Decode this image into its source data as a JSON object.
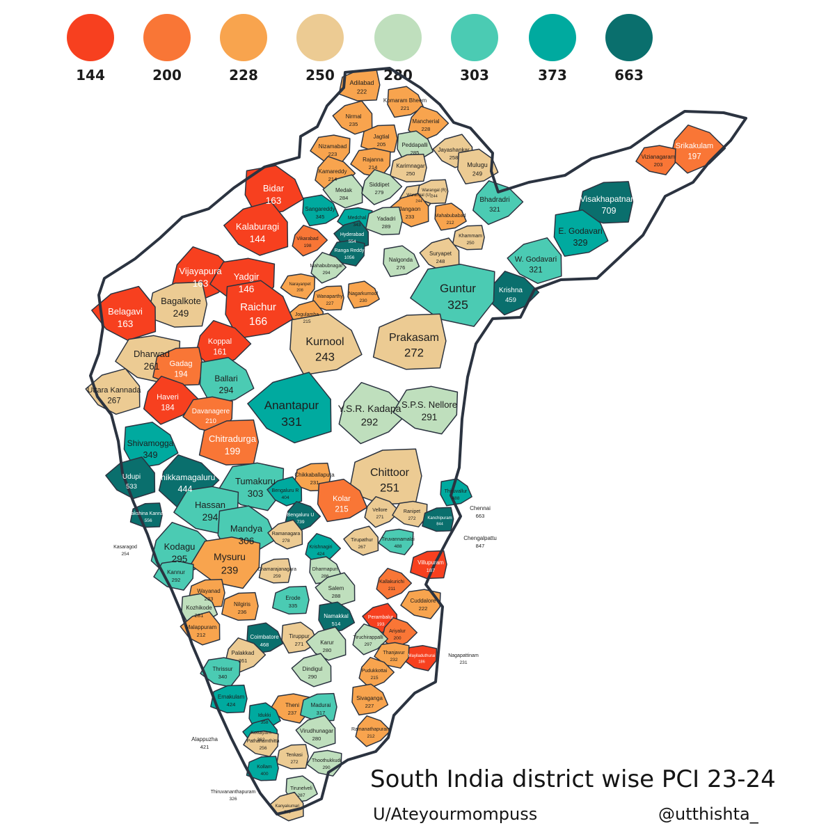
{
  "legend": {
    "items": [
      {
        "label": "144",
        "color": "#f7401f"
      },
      {
        "label": "200",
        "color": "#f97636"
      },
      {
        "label": "228",
        "color": "#f8a44e"
      },
      {
        "label": "250",
        "color": "#eccb93"
      },
      {
        "label": "280",
        "color": "#bfdfbd"
      },
      {
        "label": "303",
        "color": "#4bcbb3"
      },
      {
        "label": "373",
        "color": "#00aa9f"
      },
      {
        "label": "663",
        "color": "#0a6f6d"
      }
    ]
  },
  "title": "South India district wise PCI 23-24",
  "credits": {
    "author": "U/Ateyourmompuss",
    "handle": "@utthishta_"
  },
  "colors": {
    "border": "#2b3340",
    "text_dark": "#1d1d1d",
    "text_light": "#ffffff"
  },
  "districts": [
    {
      "name": "Adilabad",
      "value": "222",
      "bin": 2
    },
    {
      "name": "Komaram Bheem",
      "value": "221",
      "bin": 2
    },
    {
      "name": "Nirmal",
      "value": "235",
      "bin": 2
    },
    {
      "name": "Mancherial",
      "value": "228",
      "bin": 2
    },
    {
      "name": "Nizamabad",
      "value": "223",
      "bin": 2
    },
    {
      "name": "Jagtial",
      "value": "205",
      "bin": 2
    },
    {
      "name": "Peddapalli",
      "value": "285",
      "bin": 4
    },
    {
      "name": "Jayashankar",
      "value": "258",
      "bin": 3
    },
    {
      "name": "Kamareddy",
      "value": "214",
      "bin": 2
    },
    {
      "name": "Rajanna",
      "value": "214",
      "bin": 2
    },
    {
      "name": "Karimnagar",
      "value": "250",
      "bin": 3
    },
    {
      "name": "Mulugu",
      "value": "249",
      "bin": 3
    },
    {
      "name": "Medak",
      "value": "284",
      "bin": 4
    },
    {
      "name": "Siddipet",
      "value": "279",
      "bin": 4
    },
    {
      "name": "Warangal (U)",
      "value": "244",
      "bin": 3
    },
    {
      "name": "Warangal (R)",
      "value": "244",
      "bin": 3
    },
    {
      "name": "Sangareddy",
      "value": "345",
      "bin": 6
    },
    {
      "name": "Jangaon",
      "value": "233",
      "bin": 2
    },
    {
      "name": "Bhadradri",
      "value": "321",
      "bin": 5
    },
    {
      "name": "Medchal",
      "value": "343",
      "bin": 6
    },
    {
      "name": "Yadadri",
      "value": "289",
      "bin": 4
    },
    {
      "name": "Mahabubabad",
      "value": "212",
      "bin": 2
    },
    {
      "name": "Hyderabad",
      "value": "554",
      "bin": 7
    },
    {
      "name": "Vikarabad",
      "value": "198",
      "bin": 1
    },
    {
      "name": "Ranga Reddy",
      "value": "1056",
      "bin": 7
    },
    {
      "name": "Khammam",
      "value": "250",
      "bin": 3
    },
    {
      "name": "Nalgonda",
      "value": "276",
      "bin": 4
    },
    {
      "name": "Suryapet",
      "value": "248",
      "bin": 3
    },
    {
      "name": "Mahabubnagar",
      "value": "294",
      "bin": 4
    },
    {
      "name": "Narayanpet",
      "value": "208",
      "bin": 2
    },
    {
      "name": "Wanaparthy",
      "value": "227",
      "bin": 2
    },
    {
      "name": "Nagarkurnool",
      "value": "230",
      "bin": 2
    },
    {
      "name": "Jogulamba",
      "value": "215",
      "bin": 2
    },
    {
      "name": "Srikakulam",
      "value": "197",
      "bin": 1
    },
    {
      "name": "Vizianagaram",
      "value": "203",
      "bin": 1
    },
    {
      "name": "Visakhapatnam",
      "value": "709",
      "bin": 7
    },
    {
      "name": "E. Godavari",
      "value": "329",
      "bin": 6
    },
    {
      "name": "W. Godavari",
      "value": "321",
      "bin": 5
    },
    {
      "name": "Krishna",
      "value": "459",
      "bin": 7
    },
    {
      "name": "Guntur",
      "value": "325",
      "bin": 5
    },
    {
      "name": "Prakasam",
      "value": "272",
      "bin": 3
    },
    {
      "name": "Kurnool",
      "value": "243",
      "bin": 3
    },
    {
      "name": "Anantapur",
      "value": "331",
      "bin": 6
    },
    {
      "name": "Y.S.R. Kadapa",
      "value": "292",
      "bin": 4
    },
    {
      "name": "S.P.S. Nellore",
      "value": "291",
      "bin": 4
    },
    {
      "name": "Chittoor",
      "value": "251",
      "bin": 3
    },
    {
      "name": "Bidar",
      "value": "163",
      "bin": 0
    },
    {
      "name": "Kalaburagi",
      "value": "144",
      "bin": 0
    },
    {
      "name": "Vijayapura",
      "value": "163",
      "bin": 0
    },
    {
      "name": "Yadgir",
      "value": "146",
      "bin": 0
    },
    {
      "name": "Bagalkote",
      "value": "249",
      "bin": 3
    },
    {
      "name": "Raichur",
      "value": "166",
      "bin": 0
    },
    {
      "name": "Belagavi",
      "value": "163",
      "bin": 0
    },
    {
      "name": "Koppal",
      "value": "161",
      "bin": 0
    },
    {
      "name": "Dharwad",
      "value": "261",
      "bin": 3
    },
    {
      "name": "Gadag",
      "value": "194",
      "bin": 1
    },
    {
      "name": "Ballari",
      "value": "294",
      "bin": 5
    },
    {
      "name": "Uttara Kannada",
      "value": "267",
      "bin": 3
    },
    {
      "name": "Haveri",
      "value": "184",
      "bin": 0
    },
    {
      "name": "Davanagere",
      "value": "210",
      "bin": 1
    },
    {
      "name": "Chitradurga",
      "value": "199",
      "bin": 1
    },
    {
      "name": "Shivamogga",
      "value": "349",
      "bin": 6
    },
    {
      "name": "Udupi",
      "value": "533",
      "bin": 7
    },
    {
      "name": "Chikkamagaluru",
      "value": "444",
      "bin": 7
    },
    {
      "name": "Tumakuru",
      "value": "303",
      "bin": 5
    },
    {
      "name": "Chikkaballapura",
      "value": "231",
      "bin": 2
    },
    {
      "name": "Kolar",
      "value": "215",
      "bin": 1
    },
    {
      "name": "Bengaluru R",
      "value": "404",
      "bin": 6
    },
    {
      "name": "Bengaluru U",
      "value": "739",
      "bin": 7
    },
    {
      "name": "Hassan",
      "value": "294",
      "bin": 5
    },
    {
      "name": "Dakshina Kannada",
      "value": "556",
      "bin": 7
    },
    {
      "name": "Mandya",
      "value": "306",
      "bin": 5
    },
    {
      "name": "Ramanagara",
      "value": "278",
      "bin": 3
    },
    {
      "name": "Kodagu",
      "value": "295",
      "bin": 5
    },
    {
      "name": "Mysuru",
      "value": "239",
      "bin": 2
    },
    {
      "name": "Chamarajanagara",
      "value": "259",
      "bin": 3
    },
    {
      "name": "Thiruvallur",
      "value": "488",
      "bin": 6
    },
    {
      "name": "Chennai",
      "value": "663",
      "bin": 7
    },
    {
      "name": "Vellore",
      "value": "271",
      "bin": 3
    },
    {
      "name": "Ranipet",
      "value": "272",
      "bin": 3
    },
    {
      "name": "Kanchipuram",
      "value": "844",
      "bin": 7
    },
    {
      "name": "Chengalpattu",
      "value": "847",
      "bin": 7
    },
    {
      "name": "Tirupathur",
      "value": "267",
      "bin": 3
    },
    {
      "name": "Krishnagiri",
      "value": "424",
      "bin": 6
    },
    {
      "name": "Tiruvannamalai",
      "value": "488",
      "bin": 5
    },
    {
      "name": "Villupuram",
      "value": "187",
      "bin": 0
    },
    {
      "name": "Dharmapuri",
      "value": "286",
      "bin": 4
    },
    {
      "name": "Salem",
      "value": "288",
      "bin": 4
    },
    {
      "name": "Kallakurichi",
      "value": "211",
      "bin": 1
    },
    {
      "name": "Cuddalore",
      "value": "222",
      "bin": 2
    },
    {
      "name": "Erode",
      "value": "335",
      "bin": 5
    },
    {
      "name": "Namakkal",
      "value": "514",
      "bin": 7
    },
    {
      "name": "Perambalur",
      "value": "193",
      "bin": 0
    },
    {
      "name": "Ariyalur",
      "value": "200",
      "bin": 1
    },
    {
      "name": "Mayiladuthurai",
      "value": "186",
      "bin": 0
    },
    {
      "name": "Nilgiris",
      "value": "236",
      "bin": 2
    },
    {
      "name": "Tiruppur",
      "value": "271",
      "bin": 3
    },
    {
      "name": "Karur",
      "value": "280",
      "bin": 4
    },
    {
      "name": "Tiruchirappalli",
      "value": "297",
      "bin": 4
    },
    {
      "name": "Thanjavur",
      "value": "232",
      "bin": 2
    },
    {
      "name": "Nagapattinam",
      "value": "231",
      "bin": 2
    },
    {
      "name": "Coimbatore",
      "value": "468",
      "bin": 7
    },
    {
      "name": "Dindigul",
      "value": "290",
      "bin": 4
    },
    {
      "name": "Pudukkottai",
      "value": "215",
      "bin": 2
    },
    {
      "name": "Theni",
      "value": "237",
      "bin": 2
    },
    {
      "name": "Madurai",
      "value": "317",
      "bin": 5
    },
    {
      "name": "Sivaganga",
      "value": "227",
      "bin": 2
    },
    {
      "name": "Virudhunagar",
      "value": "280",
      "bin": 4
    },
    {
      "name": "Ramanathapuram",
      "value": "212",
      "bin": 2
    },
    {
      "name": "Thoothukkudi",
      "value": "290",
      "bin": 4
    },
    {
      "name": "Tenkasi",
      "value": "272",
      "bin": 3
    },
    {
      "name": "Tirunelveli",
      "value": "287",
      "bin": 4
    },
    {
      "name": "Kanyakumari",
      "value": "253",
      "bin": 3
    },
    {
      "name": "Kasaragod",
      "value": "254",
      "bin": 3
    },
    {
      "name": "Kannur",
      "value": "292",
      "bin": 5
    },
    {
      "name": "Wayanad",
      "value": "233",
      "bin": 2
    },
    {
      "name": "Kozhikode",
      "value": "281",
      "bin": 4
    },
    {
      "name": "Malappuram",
      "value": "212",
      "bin": 2
    },
    {
      "name": "Palakkad",
      "value": "261",
      "bin": 3
    },
    {
      "name": "Thrissur",
      "value": "340",
      "bin": 5
    },
    {
      "name": "Ernakulam",
      "value": "424",
      "bin": 6
    },
    {
      "name": "Idukki",
      "value": "358",
      "bin": 6
    },
    {
      "name": "Kottayam",
      "value": "362",
      "bin": 6
    },
    {
      "name": "Alappuzha",
      "value": "421",
      "bin": 6
    },
    {
      "name": "Pathanamthitta",
      "value": "256",
      "bin": 3
    },
    {
      "name": "Kollam",
      "value": "400",
      "bin": 6
    },
    {
      "name": "Thiruvananthapuram",
      "value": "326",
      "bin": 5
    }
  ]
}
